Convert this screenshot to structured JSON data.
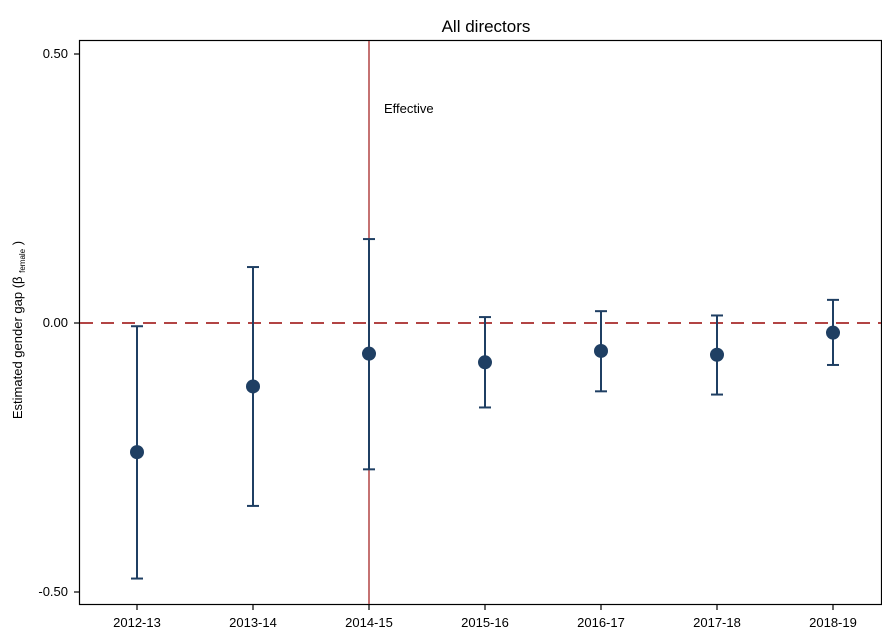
{
  "chart_data": {
    "type": "scatter",
    "title": "All directors",
    "ylabel_main": "Estimated gender gap (β",
    "ylabel_sub": "female",
    "ylabel_close": " )",
    "xlabel": "",
    "categories": [
      "2012-13",
      "2013-14",
      "2014-15",
      "2015-16",
      "2016-17",
      "2017-18",
      "2018-19"
    ],
    "estimates": [
      -0.24,
      -0.118,
      -0.057,
      -0.073,
      -0.052,
      -0.059,
      -0.018
    ],
    "ci_lower": [
      -0.475,
      -0.34,
      -0.272,
      -0.157,
      -0.127,
      -0.133,
      -0.078
    ],
    "ci_upper": [
      -0.006,
      0.104,
      0.156,
      0.011,
      0.022,
      0.014,
      0.043
    ],
    "ylim": [
      -0.52,
      0.52
    ],
    "yticks": [
      0.5,
      0.0,
      -0.5
    ],
    "ytick_labels": [
      "0.50",
      "0.00",
      "-0.50"
    ],
    "reference_line": {
      "y": 0,
      "style": "dashed",
      "color": "#b24444"
    },
    "event_line": {
      "category": "2014-15",
      "label": "Effective",
      "color": "#b24444"
    },
    "point_color": "#1f3f63",
    "grid": false,
    "legend": "none"
  }
}
